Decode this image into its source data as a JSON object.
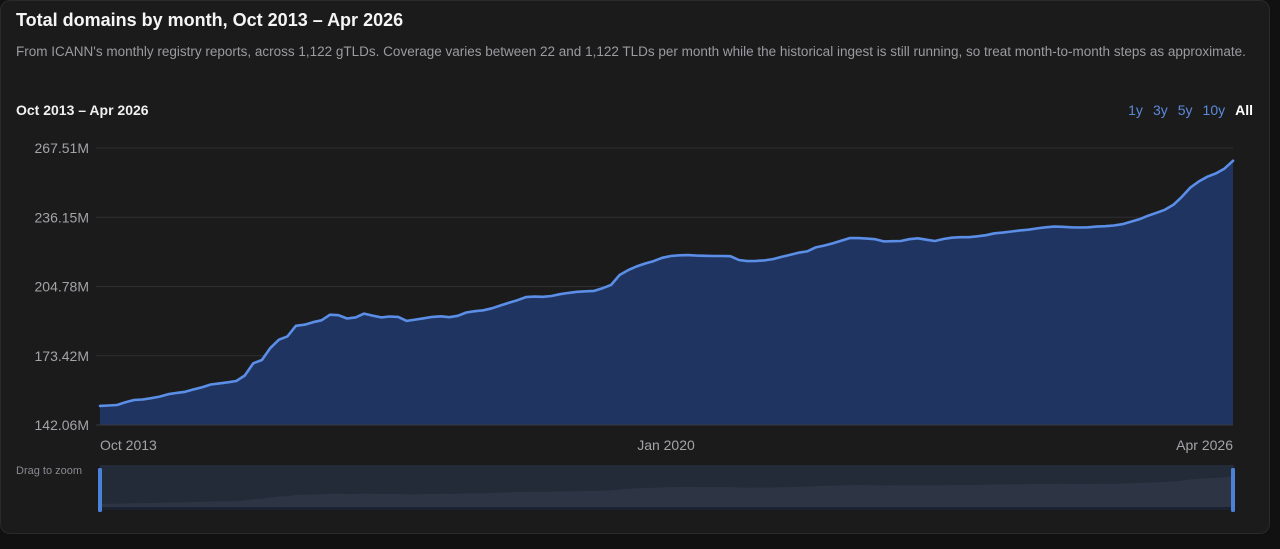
{
  "header": {
    "title": "Total domains by month, Oct 2013 – Apr 2026",
    "subtitle": "From ICANN's monthly registry reports, across 1,122 gTLDs. Coverage varies between 22 and 1,122 TLDs per month while the historical ingest is still running, so treat month-to-month steps as approximate."
  },
  "range_label": "Oct 2013 – Apr 2026",
  "period_buttons": [
    {
      "label": "1y",
      "active": false
    },
    {
      "label": "3y",
      "active": false
    },
    {
      "label": "5y",
      "active": false
    },
    {
      "label": "10y",
      "active": false
    },
    {
      "label": "All",
      "active": true
    }
  ],
  "zoom": {
    "label": "Drag to zoom",
    "selection": [
      0,
      1
    ]
  },
  "colors": {
    "line": "#5b8ee6",
    "area": "#1f3460",
    "grid": "#2f2f33",
    "handle": "#4a82d8",
    "accent_link": "#5b8ad9"
  },
  "chart_data": {
    "type": "area",
    "title": "Total domains by month, Oct 2013 – Apr 2026",
    "x_start": "Oct 2013",
    "x_end": "Apr 2026",
    "x_tick_labels": [
      "Oct 2013",
      "Jan 2020",
      "Apr 2026"
    ],
    "y_tick_labels": [
      "267.51M",
      "236.15M",
      "204.78M",
      "173.42M",
      "142.06M"
    ],
    "ylim": [
      142.06,
      267.51
    ],
    "unit": "M",
    "grid": true,
    "legend": "none",
    "series": [
      {
        "values": [
          150.7,
          150.9,
          151.1,
          152.4,
          153.4,
          153.6,
          154.2,
          154.9,
          156.0,
          156.6,
          157.1,
          158.2,
          159.2,
          160.4,
          160.9,
          161.4,
          162.0,
          164.5,
          170.0,
          171.5,
          177.0,
          180.7,
          182.2,
          187.0,
          187.5,
          188.6,
          189.5,
          192.0,
          191.8,
          190.3,
          190.8,
          192.5,
          191.6,
          190.8,
          191.2,
          191.0,
          189.2,
          189.8,
          190.4,
          191.0,
          191.3,
          190.9,
          191.5,
          193.0,
          193.6,
          194.0,
          194.9,
          196.2,
          197.4,
          198.6,
          200.0,
          200.2,
          200.1,
          200.5,
          201.3,
          201.9,
          202.4,
          202.6,
          202.8,
          204.0,
          205.5,
          210.0,
          212.2,
          213.9,
          215.2,
          216.3,
          217.8,
          218.6,
          218.9,
          219.0,
          218.8,
          218.7,
          218.6,
          218.6,
          218.5,
          216.8,
          216.3,
          216.4,
          216.6,
          217.2,
          218.2,
          219.1,
          220.1,
          220.7,
          222.5,
          223.3,
          224.3,
          225.5,
          226.7,
          226.7,
          226.5,
          226.2,
          225.2,
          225.3,
          225.4,
          226.2,
          226.6,
          226.0,
          225.4,
          226.3,
          226.9,
          227.1,
          227.1,
          227.5,
          228.0,
          228.9,
          229.2,
          229.7,
          230.2,
          230.5,
          231.1,
          231.6,
          231.9,
          231.8,
          231.6,
          231.5,
          231.6,
          231.9,
          232.1,
          232.4,
          233.0,
          234.1,
          235.2,
          236.8,
          238.1,
          239.5,
          241.8,
          245.4,
          249.6,
          252.4,
          254.5,
          256.0,
          258.2,
          261.7
        ]
      }
    ]
  }
}
